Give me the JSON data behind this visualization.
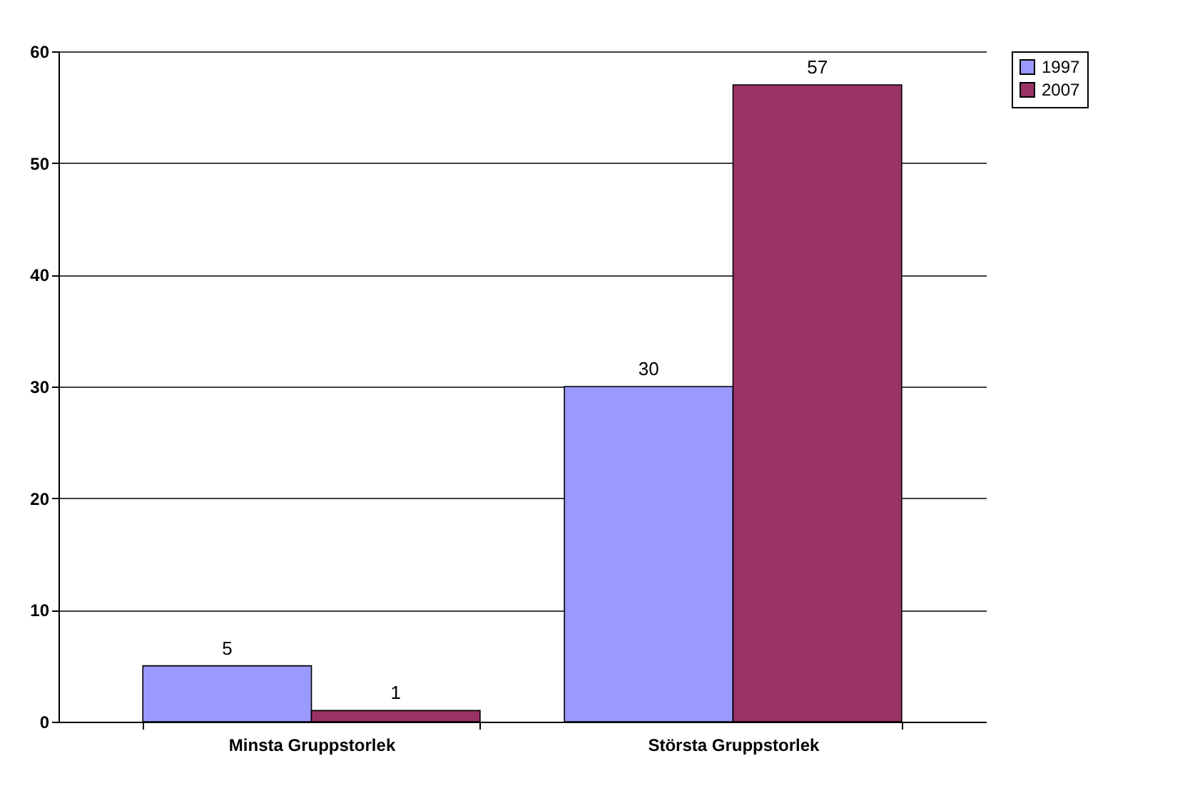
{
  "chart_data": {
    "type": "bar",
    "categories": [
      "Minsta Gruppstorlek",
      "Största Gruppstorlek"
    ],
    "series": [
      {
        "name": "1997",
        "color": "#9999ff",
        "values": [
          5,
          30
        ]
      },
      {
        "name": "2007",
        "color": "#993366",
        "values": [
          1,
          57
        ]
      }
    ],
    "ylim": [
      0,
      60
    ],
    "yticks": [
      0,
      10,
      20,
      30,
      40,
      50,
      60
    ],
    "grid": "y",
    "legend": "right",
    "data_labels": true
  }
}
